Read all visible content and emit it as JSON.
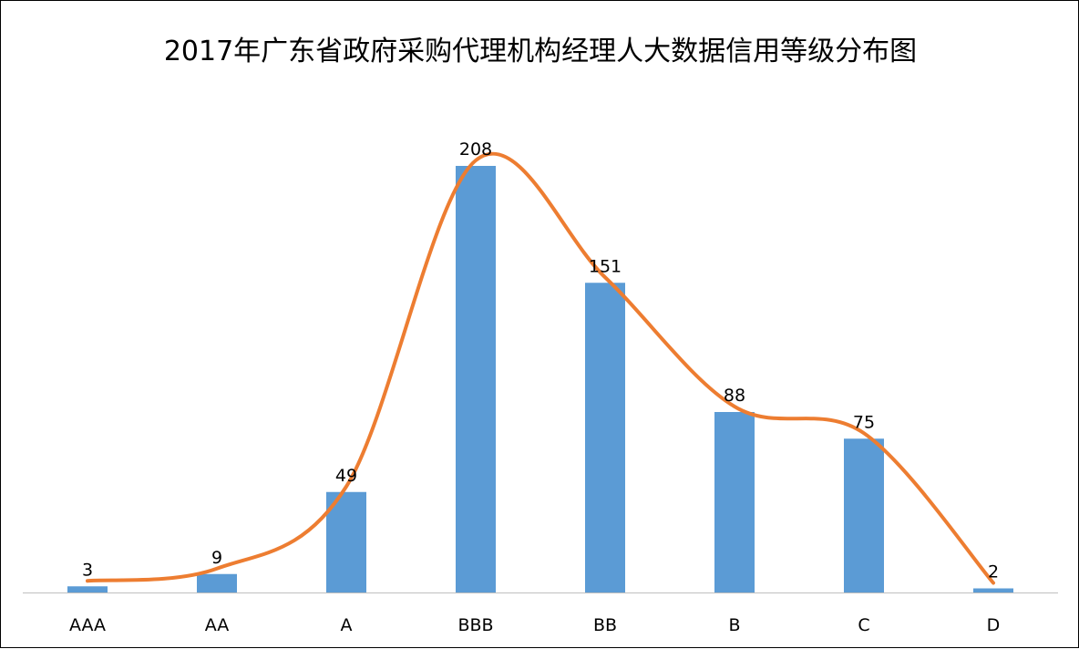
{
  "chart_data": {
    "type": "bar",
    "title": "2017年广东省政府采购代理机构经理人大数据信用等级分布图",
    "categories": [
      "AAA",
      "AA",
      "A",
      "BBB",
      "BB",
      "B",
      "C",
      "D"
    ],
    "values": [
      3,
      9,
      49,
      208,
      151,
      88,
      75,
      2
    ],
    "ylim": [
      0,
      208
    ],
    "grid": false,
    "legend": "none",
    "smooth_line_overlay": true,
    "colors": {
      "bar": "#5b9bd5",
      "line": "#ed7d31",
      "axis": "#bfbfbf",
      "border": "#000000"
    }
  }
}
